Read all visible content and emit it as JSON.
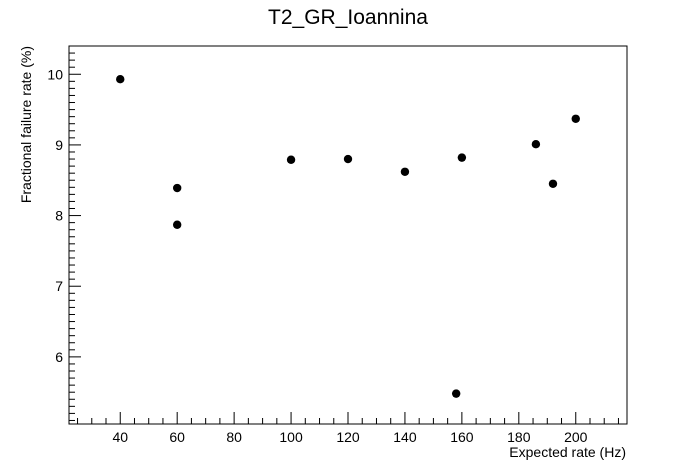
{
  "chart_data": {
    "type": "scatter",
    "title": "T2_GR_Ioannina",
    "xlabel": "Expected rate (Hz)",
    "ylabel": "Fractional failure rate (%)",
    "xlim": [
      22,
      218
    ],
    "ylim": [
      5.05,
      10.4
    ],
    "x_ticks": [
      40,
      60,
      80,
      100,
      120,
      140,
      160,
      180,
      200
    ],
    "y_ticks": [
      6,
      7,
      8,
      9,
      10
    ],
    "grid": false,
    "legend": "none",
    "marker_color": "#000000",
    "points": [
      {
        "x": 40,
        "y": 9.93
      },
      {
        "x": 60,
        "y": 8.39
      },
      {
        "x": 60,
        "y": 7.87
      },
      {
        "x": 100,
        "y": 8.79
      },
      {
        "x": 120,
        "y": 8.8
      },
      {
        "x": 140,
        "y": 8.62
      },
      {
        "x": 158,
        "y": 5.48
      },
      {
        "x": 160,
        "y": 8.82
      },
      {
        "x": 186,
        "y": 9.01
      },
      {
        "x": 192,
        "y": 8.45
      },
      {
        "x": 200,
        "y": 9.37
      }
    ]
  }
}
